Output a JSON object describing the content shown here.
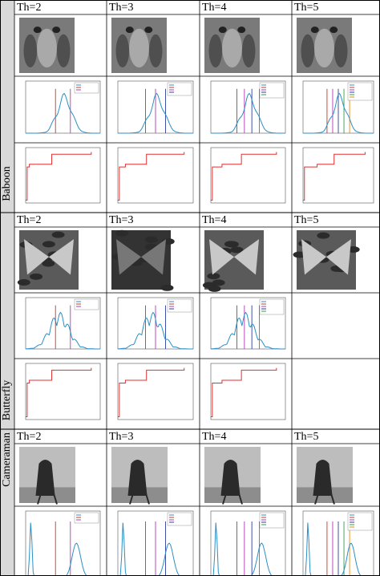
{
  "sections": [
    {
      "name": "Baboon",
      "headers": [
        "Th=2",
        "Th=3",
        "Th=4",
        "Th=5"
      ]
    },
    {
      "name": "Butterfly",
      "headers": [
        "Th=2",
        "Th=3",
        "Th=4",
        "Th=5"
      ]
    },
    {
      "name": "Cameraman",
      "headers": [
        "Th=2",
        "Th=3",
        "Th=4",
        "Th=5"
      ]
    }
  ]
}
